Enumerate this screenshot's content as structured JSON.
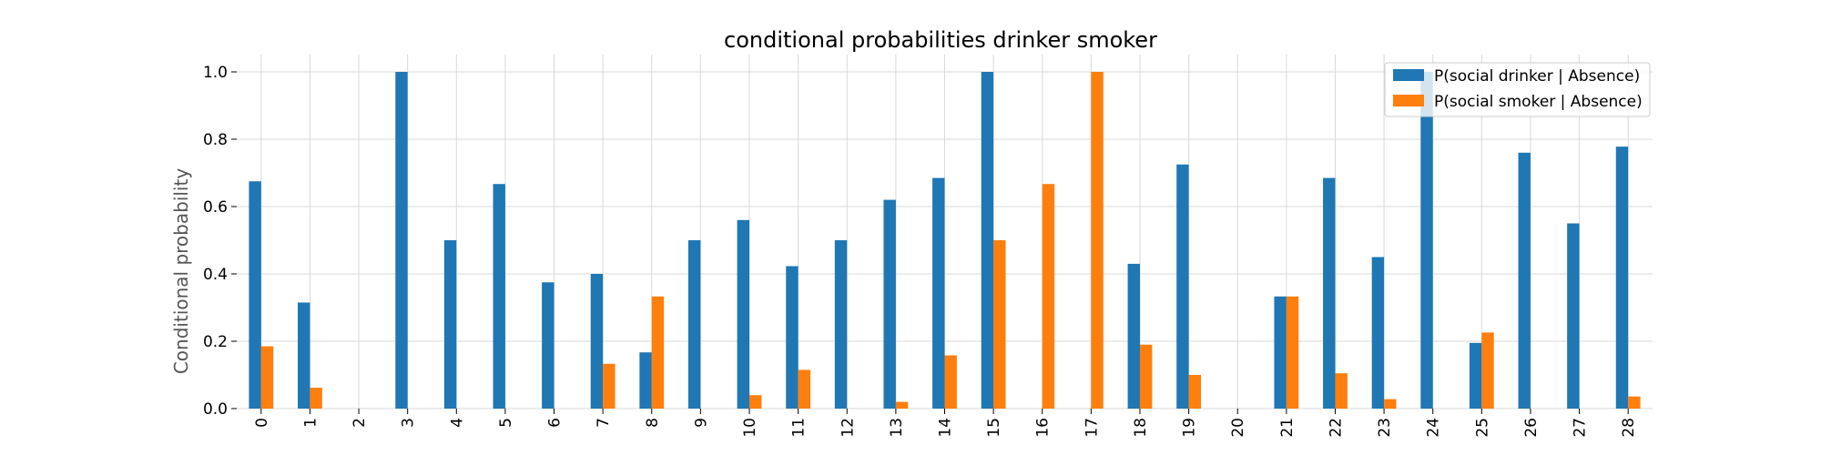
{
  "chart_data": {
    "type": "bar",
    "title": "conditional probabilities drinker smoker",
    "xlabel": "",
    "ylabel": "Conditional probability",
    "ylim": [
      0,
      1.05
    ],
    "yticks": [
      "0.0",
      "0.2",
      "0.4",
      "0.6",
      "0.8",
      "1.0"
    ],
    "categories": [
      "0",
      "1",
      "2",
      "3",
      "4",
      "5",
      "6",
      "7",
      "8",
      "9",
      "10",
      "11",
      "12",
      "13",
      "14",
      "15",
      "16",
      "17",
      "18",
      "19",
      "20",
      "21",
      "22",
      "23",
      "24",
      "25",
      "26",
      "27",
      "28"
    ],
    "series": [
      {
        "name": "P(social drinker | Absence)",
        "color": "#1f77b4",
        "values": [
          0.675,
          0.315,
          0.0,
          1.0,
          0.5,
          0.667,
          0.375,
          0.4,
          0.167,
          0.5,
          0.56,
          0.423,
          0.5,
          0.62,
          0.685,
          1.0,
          0.0,
          0.0,
          0.43,
          0.725,
          0.0,
          0.333,
          0.685,
          0.45,
          1.0,
          0.195,
          0.76,
          0.55,
          0.778
        ]
      },
      {
        "name": "P(social smoker | Absence)",
        "color": "#ff7f0e",
        "values": [
          0.185,
          0.062,
          0.0,
          0.0,
          0.0,
          0.0,
          0.0,
          0.133,
          0.333,
          0.0,
          0.04,
          0.115,
          0.0,
          0.02,
          0.158,
          0.5,
          0.667,
          1.0,
          0.19,
          0.1,
          0.0,
          0.333,
          0.105,
          0.028,
          0.0,
          0.226,
          0.0,
          0.0,
          0.036
        ]
      }
    ],
    "grid": true,
    "legend": "top-right",
    "xtick_rotation": "vertical"
  }
}
